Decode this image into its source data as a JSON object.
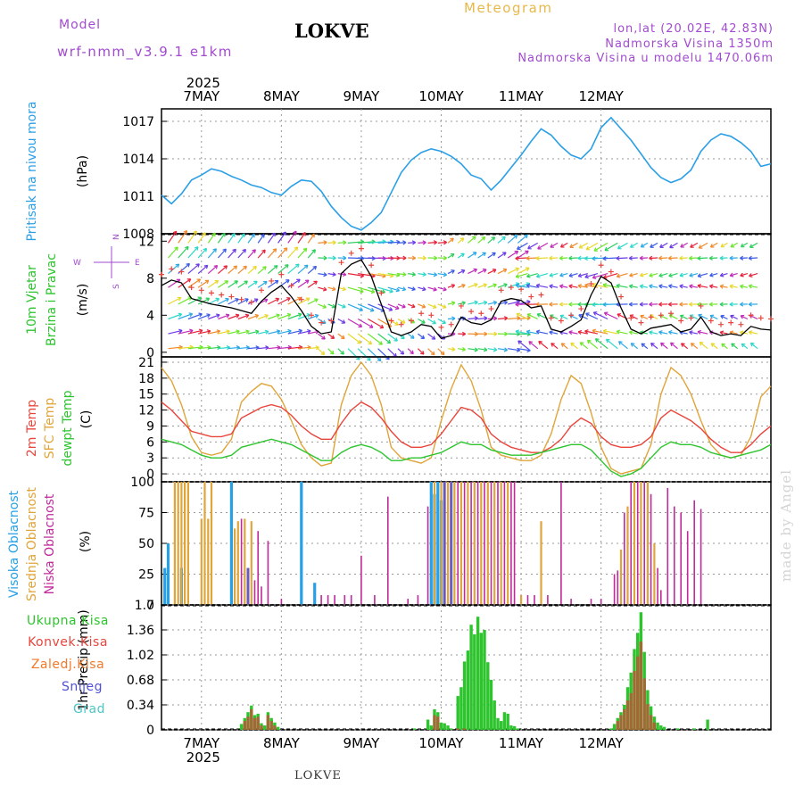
{
  "header": {
    "model_label": "Model",
    "model_value": "wrf-nmm_v3.9.1 e1km",
    "station": "LOKVE",
    "meteogram": "Meteogram",
    "coords": "lon,lat (20.02E, 42.83N)",
    "elevation": "Nadmorska Visina 1350m",
    "model_elevation": "Nadmorska Visina u modelu 1470.06m"
  },
  "footer": {
    "station": "LOKVE",
    "credit": "made by Angel"
  },
  "colors": {
    "pressure": "#2b9fe6",
    "t2m": "#e8453c",
    "sfc": "#e0a53a",
    "dew": "#2ec42e",
    "high_cloud": "#27a0e6",
    "mid_cloud": "#e0a53a",
    "low_cloud": "#c02a9a",
    "total_precip": "#2ec42e",
    "conv_precip": "#a06a34",
    "snow": "#5050d8",
    "grad": "#4ec6c6",
    "purple": "#a24ad0"
  },
  "chart_data": [
    {
      "panel": "pressure",
      "type": "line",
      "ylabel": [
        "Pritisak na nivou mora",
        "(hPa)"
      ],
      "yticks": [
        "1008",
        "1011",
        "1014",
        "1017"
      ],
      "ylim": [
        1008,
        1018
      ],
      "x_start_hour": 0,
      "x_step_hours": 3,
      "values": [
        1011.1,
        1010.4,
        1011.2,
        1012.3,
        1012.7,
        1013.2,
        1013.0,
        1012.6,
        1012.3,
        1011.9,
        1011.7,
        1011.3,
        1011.1,
        1011.8,
        1012.3,
        1012.2,
        1011.4,
        1010.2,
        1009.3,
        1008.6,
        1008.3,
        1008.9,
        1009.7,
        1011.3,
        1012.9,
        1013.9,
        1014.5,
        1014.8,
        1014.6,
        1014.2,
        1013.6,
        1012.7,
        1012.4,
        1011.5,
        1012.3,
        1013.3,
        1014.3,
        1015.4,
        1016.4,
        1015.9,
        1015.0,
        1014.3,
        1014.0,
        1014.8,
        1016.5,
        1017.3,
        1016.4,
        1015.5,
        1014.4,
        1013.3,
        1012.5,
        1012.1,
        1012.4,
        1013.1,
        1014.6,
        1015.5,
        1016.0,
        1015.8,
        1015.3,
        1014.6,
        1013.4,
        1013.6
      ]
    },
    {
      "panel": "wind",
      "type": "line",
      "ylabel": [
        "10m Vjetar",
        "Brzina i Pravac",
        "(m/s)"
      ],
      "compass": [
        "N",
        "S",
        "W",
        "E"
      ],
      "yticks": [
        "0",
        "4",
        "8",
        "12"
      ],
      "ylim": [
        -0.5,
        12.8
      ],
      "x_start_hour": 0,
      "x_step_hours": 3,
      "values": [
        7.2,
        7.8,
        7.5,
        5.8,
        5.5,
        5.2,
        5.0,
        4.8,
        4.5,
        4.2,
        5.5,
        6.5,
        7.2,
        6.0,
        4.5,
        2.8,
        2.0,
        2.2,
        8.5,
        9.5,
        10.0,
        8.2,
        5.2,
        2.2,
        1.8,
        2.2,
        3.0,
        2.8,
        1.5,
        1.8,
        3.8,
        3.2,
        3.0,
        3.5,
        5.5,
        5.8,
        5.6,
        4.8,
        5.0,
        2.5,
        2.2,
        2.8,
        3.5,
        6.2,
        8.2,
        7.5,
        4.8,
        2.5,
        2.0,
        2.6,
        2.8,
        3.0,
        2.2,
        2.5,
        3.8,
        2.2,
        1.8,
        2.0,
        1.8,
        2.8,
        2.5,
        2.4
      ],
      "arrow_colors": [
        "#e6223a",
        "#f08a2a",
        "#e8d82a",
        "#6ce62a",
        "#2acf5a",
        "#2ad8c8",
        "#2aa8e6",
        "#3a5ae6",
        "#6a3ae6",
        "#c02ab8"
      ]
    },
    {
      "panel": "temperature",
      "type": "line",
      "ylabel": [
        "2m Temp",
        "SFC Temp",
        "dewpt Temp",
        "(C)"
      ],
      "series_names": [
        "2m Temp",
        "SFC Temp",
        "dewpt Temp"
      ],
      "yticks": [
        "0",
        "3",
        "6",
        "9",
        "12",
        "15",
        "18",
        "21"
      ],
      "ylim": [
        -1.5,
        22
      ],
      "x_start_hour": 0,
      "x_step_hours": 3,
      "series": [
        {
          "name": "2m Temp",
          "values": [
            13.5,
            12.0,
            10.0,
            8.0,
            7.5,
            7.0,
            7.0,
            7.5,
            10.5,
            11.5,
            12.5,
            13.0,
            12.5,
            11.0,
            9.0,
            7.5,
            6.5,
            6.5,
            9.5,
            12.0,
            13.5,
            12.5,
            10.5,
            8.0,
            6.0,
            5.0,
            5.0,
            5.5,
            7.5,
            10.0,
            12.5,
            12.0,
            10.5,
            7.5,
            6.0,
            5.0,
            4.5,
            4.0,
            4.0,
            5.0,
            6.5,
            9.0,
            10.5,
            9.5,
            7.0,
            5.5,
            5.0,
            5.0,
            5.5,
            7.0,
            10.5,
            12.0,
            11.0,
            10.0,
            8.5,
            6.5,
            5.0,
            4.0,
            4.0,
            5.5,
            7.5,
            9.0
          ]
        },
        {
          "name": "SFC Temp",
          "values": [
            20.0,
            17.5,
            13.0,
            7.0,
            4.0,
            3.5,
            4.0,
            6.5,
            13.5,
            15.5,
            17.0,
            16.5,
            14.0,
            10.0,
            5.5,
            3.0,
            1.5,
            2.0,
            13.0,
            18.5,
            21.0,
            18.5,
            13.0,
            5.0,
            3.0,
            2.5,
            2.0,
            3.0,
            10.0,
            16.0,
            20.5,
            17.5,
            12.0,
            5.0,
            3.5,
            3.0,
            2.5,
            2.5,
            3.5,
            7.5,
            14.0,
            18.5,
            17.0,
            11.5,
            5.0,
            1.0,
            0.0,
            0.5,
            1.0,
            5.5,
            15.0,
            20.0,
            18.5,
            15.0,
            10.0,
            5.5,
            3.5,
            3.0,
            3.5,
            7.0,
            14.5,
            16.5
          ]
        },
        {
          "name": "dewpt Temp",
          "values": [
            6.5,
            6.0,
            5.5,
            4.5,
            3.5,
            3.0,
            3.0,
            3.5,
            5.0,
            5.5,
            6.0,
            6.5,
            6.0,
            5.5,
            4.5,
            3.5,
            2.5,
            2.5,
            4.0,
            5.0,
            5.5,
            5.0,
            4.0,
            2.5,
            2.5,
            3.0,
            3.0,
            3.5,
            4.0,
            5.0,
            6.0,
            5.5,
            5.5,
            4.5,
            4.0,
            3.5,
            3.5,
            3.5,
            4.0,
            4.5,
            5.0,
            5.5,
            5.5,
            4.5,
            2.5,
            0.5,
            -0.5,
            0.0,
            1.0,
            3.0,
            5.0,
            6.0,
            5.5,
            5.5,
            5.0,
            4.0,
            3.5,
            3.0,
            3.5,
            4.0,
            4.5,
            5.5
          ]
        }
      ]
    },
    {
      "panel": "clouds",
      "type": "bar",
      "ylabel": [
        "Visoka Oblacnost",
        "Srednja Oblacnost",
        "Niska Oblacnost",
        "(%)"
      ],
      "series_names": [
        "Visoka Oblacnost",
        "Srednja Oblacnost",
        "Niska Oblacnost"
      ],
      "yticks": [
        "0",
        "25",
        "50",
        "75",
        "100"
      ],
      "ylim": [
        0,
        100
      ],
      "x_step_hours": 1,
      "bars": [
        [
          1,
          "high",
          30
        ],
        [
          2,
          "high",
          50
        ],
        [
          4,
          "mid",
          100
        ],
        [
          5,
          "mid",
          100
        ],
        [
          6,
          "high",
          30
        ],
        [
          6,
          "mid",
          100
        ],
        [
          7,
          "mid",
          100
        ],
        [
          8,
          "mid",
          100
        ],
        [
          12,
          "mid",
          70
        ],
        [
          13,
          "mid",
          100
        ],
        [
          14,
          "mid",
          70
        ],
        [
          15,
          "mid",
          100
        ],
        [
          21,
          "high",
          100
        ],
        [
          22,
          "mid",
          62
        ],
        [
          23,
          "mid",
          68
        ],
        [
          24,
          "low",
          70
        ],
        [
          25,
          "mid",
          70
        ],
        [
          26,
          "high",
          30
        ],
        [
          26,
          "low",
          30
        ],
        [
          27,
          "mid",
          68
        ],
        [
          28,
          "low",
          20
        ],
        [
          29,
          "low",
          60
        ],
        [
          30,
          "low",
          15
        ],
        [
          32,
          "low",
          52
        ],
        [
          36,
          "low",
          5
        ],
        [
          42,
          "high",
          100
        ],
        [
          46,
          "high",
          18
        ],
        [
          48,
          "low",
          8
        ],
        [
          50,
          "low",
          8
        ],
        [
          52,
          "low",
          8
        ],
        [
          55,
          "low",
          8
        ],
        [
          57,
          "low",
          8
        ],
        [
          60,
          "low",
          40
        ],
        [
          64,
          "low",
          8
        ],
        [
          68,
          "low",
          88
        ],
        [
          74,
          "low",
          5
        ],
        [
          77,
          "low",
          8
        ],
        [
          80,
          "low",
          80
        ],
        [
          81,
          "high",
          100
        ],
        [
          82,
          "high",
          90
        ],
        [
          82,
          "mid",
          100
        ],
        [
          83,
          "high",
          100
        ],
        [
          84,
          "high",
          85
        ],
        [
          84,
          "mid",
          100
        ],
        [
          85,
          "high",
          100
        ],
        [
          85,
          "low",
          100
        ],
        [
          86,
          "mid",
          100
        ],
        [
          87,
          "high",
          100
        ],
        [
          87,
          "low",
          100
        ],
        [
          88,
          "mid",
          100
        ],
        [
          89,
          "low",
          100
        ],
        [
          90,
          "mid",
          100
        ],
        [
          91,
          "low",
          100
        ],
        [
          92,
          "mid",
          100
        ],
        [
          93,
          "low",
          100
        ],
        [
          94,
          "mid",
          100
        ],
        [
          95,
          "low",
          100
        ],
        [
          96,
          "mid",
          100
        ],
        [
          97,
          "low",
          100
        ],
        [
          98,
          "mid",
          100
        ],
        [
          99,
          "low",
          100
        ],
        [
          100,
          "mid",
          100
        ],
        [
          101,
          "low",
          100
        ],
        [
          102,
          "mid",
          100
        ],
        [
          103,
          "low",
          100
        ],
        [
          104,
          "mid",
          100
        ],
        [
          105,
          "low",
          100
        ],
        [
          106,
          "low",
          100
        ],
        [
          108,
          "mid",
          8
        ],
        [
          110,
          "low",
          8
        ],
        [
          112,
          "low",
          8
        ],
        [
          114,
          "mid",
          68
        ],
        [
          116,
          "low",
          8
        ],
        [
          120,
          "low",
          100
        ],
        [
          123,
          "low",
          5
        ],
        [
          129,
          "low",
          5
        ],
        [
          132,
          "low",
          5
        ],
        [
          136,
          "low",
          25
        ],
        [
          137,
          "low",
          28
        ],
        [
          138,
          "mid",
          45
        ],
        [
          139,
          "low",
          75
        ],
        [
          140,
          "mid",
          80
        ],
        [
          141,
          "low",
          100
        ],
        [
          142,
          "mid",
          100
        ],
        [
          143,
          "low",
          100
        ],
        [
          144,
          "mid",
          100
        ],
        [
          145,
          "low",
          100
        ],
        [
          146,
          "mid",
          100
        ],
        [
          147,
          "low",
          90
        ],
        [
          148,
          "mid",
          50
        ],
        [
          149,
          "low",
          30
        ],
        [
          150,
          "low",
          12
        ],
        [
          152,
          "low",
          95
        ],
        [
          154,
          "low",
          80
        ],
        [
          156,
          "low",
          75
        ],
        [
          158,
          "low",
          60
        ],
        [
          160,
          "low",
          85
        ],
        [
          162,
          "low",
          78
        ]
      ]
    },
    {
      "panel": "precip",
      "type": "bar",
      "ylabel": [
        "1hr Precip (mm)"
      ],
      "series_names": [
        "Ukupna Kisa",
        "Konvek.Kisa",
        "Zaledj.Kisa",
        "Snijeg",
        "Grad"
      ],
      "yticks": [
        "0",
        "0.34",
        "0.68",
        "1.02",
        "1.36",
        "1.7"
      ],
      "ylim": [
        0,
        1.7
      ],
      "x_step_hours": 1,
      "total": [
        [
          24,
          0.08
        ],
        [
          25,
          0.16
        ],
        [
          26,
          0.24
        ],
        [
          27,
          0.33
        ],
        [
          28,
          0.2
        ],
        [
          29,
          0.22
        ],
        [
          30,
          0.09
        ],
        [
          31,
          0.06
        ],
        [
          32,
          0.24
        ],
        [
          33,
          0.16
        ],
        [
          34,
          0.1
        ],
        [
          35,
          0.04
        ],
        [
          76,
          0.02
        ],
        [
          80,
          0.14
        ],
        [
          81,
          0.06
        ],
        [
          82,
          0.28
        ],
        [
          83,
          0.24
        ],
        [
          84,
          0.1
        ],
        [
          85,
          0.09
        ],
        [
          86,
          0.06
        ],
        [
          87,
          0.02
        ],
        [
          89,
          0.46
        ],
        [
          90,
          0.58
        ],
        [
          91,
          0.93
        ],
        [
          92,
          1.08
        ],
        [
          93,
          1.43
        ],
        [
          94,
          1.3
        ],
        [
          95,
          1.54
        ],
        [
          96,
          1.32
        ],
        [
          97,
          1.36
        ],
        [
          98,
          0.92
        ],
        [
          99,
          0.68
        ],
        [
          100,
          0.4
        ],
        [
          101,
          0.16
        ],
        [
          102,
          0.12
        ],
        [
          103,
          0.24
        ],
        [
          104,
          0.22
        ],
        [
          105,
          0.06
        ],
        [
          106,
          0.05
        ],
        [
          107,
          0.02
        ],
        [
          135,
          0.02
        ],
        [
          136,
          0.08
        ],
        [
          137,
          0.16
        ],
        [
          138,
          0.24
        ],
        [
          139,
          0.34
        ],
        [
          140,
          0.58
        ],
        [
          141,
          0.78
        ],
        [
          142,
          1.1
        ],
        [
          143,
          1.32
        ],
        [
          144,
          1.6
        ],
        [
          145,
          1.06
        ],
        [
          146,
          0.54
        ],
        [
          147,
          0.32
        ],
        [
          148,
          0.18
        ],
        [
          149,
          0.1
        ],
        [
          150,
          0.06
        ],
        [
          151,
          0.04
        ],
        [
          155,
          0.02
        ],
        [
          160,
          0.02
        ],
        [
          164,
          0.14
        ]
      ],
      "conv": [
        [
          25,
          0.12
        ],
        [
          26,
          0.18
        ],
        [
          27,
          0.28
        ],
        [
          28,
          0.16
        ],
        [
          29,
          0.18
        ],
        [
          30,
          0.06
        ],
        [
          32,
          0.2
        ],
        [
          33,
          0.12
        ],
        [
          34,
          0.06
        ],
        [
          82,
          0.2
        ],
        [
          83,
          0.18
        ],
        [
          89,
          0.02
        ],
        [
          91,
          0.02
        ],
        [
          137,
          0.12
        ],
        [
          138,
          0.2
        ],
        [
          139,
          0.28
        ],
        [
          140,
          0.4
        ],
        [
          141,
          0.5
        ],
        [
          142,
          0.8
        ],
        [
          143,
          1.0
        ],
        [
          144,
          1.2
        ],
        [
          145,
          0.7
        ],
        [
          146,
          0.35
        ],
        [
          147,
          0.2
        ],
        [
          148,
          0.1
        ]
      ]
    }
  ],
  "x_axis": {
    "top_year": "2025",
    "bottom_year": "2025",
    "day_labels": [
      "7MAY",
      "8MAY",
      "9MAY",
      "10MAY",
      "11MAY",
      "12MAY"
    ],
    "first_day_offset_hours": 12
  },
  "legend": {
    "precip_items": [
      {
        "label": "Ukupna Kisa",
        "color": "#2ec42e"
      },
      {
        "label": "Konvek.Kisa",
        "color": "#e8453c"
      },
      {
        "label": "Zaledj.Kisa",
        "color": "#f07a2a"
      },
      {
        "label": "Snijeg",
        "color": "#5050d8"
      },
      {
        "label": "Grad",
        "color": "#4ec6c6"
      }
    ]
  }
}
